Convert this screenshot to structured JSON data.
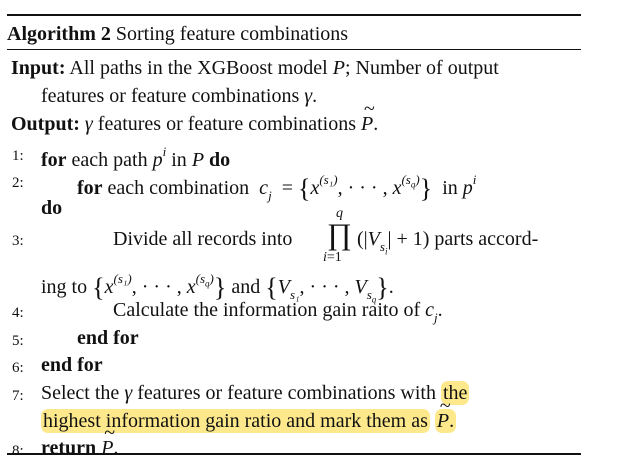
{
  "algorithm": {
    "label": "Algorithm 2",
    "title": "Sorting feature combinations",
    "input_kw": "Input:",
    "input_text_1": "All paths in the XGBoost model",
    "input_var_P": "P",
    "input_text_2": "; Number of output",
    "input_text_3": "features or feature combinations",
    "gamma": "γ",
    "period": ".",
    "output_kw": "Output:",
    "output_text": "features or feature combinations",
    "lines": [
      {
        "num": "1:",
        "kw": "for",
        "text": "each path",
        "kw2": "do",
        "in_text": "in"
      },
      {
        "num": "2:",
        "kw": "for",
        "text": "each combination",
        "in_text": "in",
        "kw2": "do"
      },
      {
        "num": "3:",
        "text": "Divide all records into",
        "text2": "parts accord-",
        "text3": "ing to",
        "and_text": "and"
      },
      {
        "num": "4:",
        "text": "Calculate the information gain raito of"
      },
      {
        "num": "5:",
        "kw": "end for"
      },
      {
        "num": "6:",
        "kw": "end for"
      },
      {
        "num": "7:",
        "text": "Select the",
        "text_b": "features or feature combinations with",
        "hl1": "the",
        "hl2": "highest information gain ratio and mark them as"
      },
      {
        "num": "8:",
        "kw": "return"
      }
    ]
  }
}
